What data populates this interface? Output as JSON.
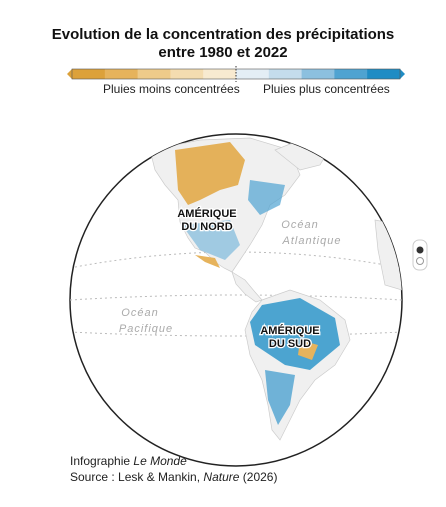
{
  "title": [
    "Evolution de la concentration des précipitations",
    "entre 1980 et 2022"
  ],
  "legend": {
    "colors": [
      "#dca13a",
      "#e6b35c",
      "#eecb8a",
      "#f4dcb0",
      "#f8ead0",
      "#e4eef5",
      "#c4dcec",
      "#8cc0df",
      "#4fa3d1",
      "#1f8cc4"
    ],
    "labels": [
      "Pluies moins concentrées",
      "Pluies plus concentrées"
    ]
  },
  "map": {
    "oceans": [
      [
        "Océan",
        "Atlantique"
      ],
      [
        "Océan",
        "Pacifique"
      ]
    ],
    "continents": [
      [
        "AMÉRIQUE",
        "DU NORD"
      ],
      [
        "AMÉRIQUE",
        "DU SUD"
      ]
    ]
  },
  "credit": [
    "Infographie ",
    "Le Monde"
  ],
  "source": [
    "Source : Lesk & Mankin, ",
    "Nature",
    " (2026)"
  ]
}
